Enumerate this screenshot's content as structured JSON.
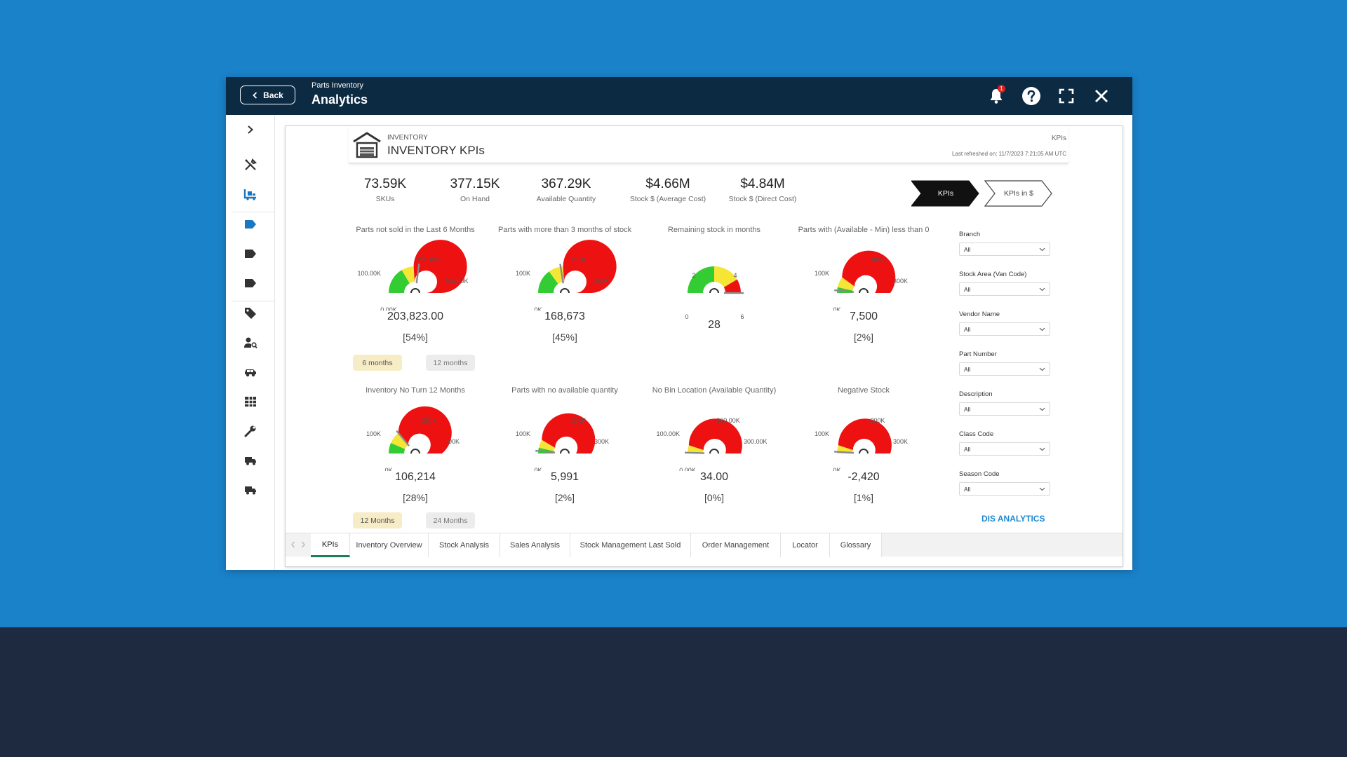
{
  "titlebar": {
    "back_label": "Back",
    "subtitle": "Parts Inventory",
    "title": "Analytics",
    "notification_count": "1"
  },
  "sidebar": {
    "icons": [
      "chevron-right-icon",
      "tools-icon",
      "forklift-icon",
      "tag-blue-icon",
      "tag-icon",
      "tag-icon",
      "price-tag-icon",
      "user-search-icon",
      "car-icon",
      "grid-icon",
      "wrench-icon",
      "truck-icon",
      "truck-icon"
    ]
  },
  "header": {
    "small": "INVENTORY",
    "title": "INVENTORY KPIs",
    "right_label": "KPIs",
    "refreshed": "Last refreshed on: 11/7/2023 7:21:05 AM UTC"
  },
  "stats": [
    {
      "value": "73.59K",
      "label": "SKUs"
    },
    {
      "value": "377.15K",
      "label": "On Hand"
    },
    {
      "value": "367.29K",
      "label": "Available Quantity"
    },
    {
      "value": "$4.66M",
      "label": "Stock $ (Average Cost)"
    },
    {
      "value": "$4.84M",
      "label": "Stock $ (Direct Cost)"
    }
  ],
  "view_buttons": {
    "kpis": "KPIs",
    "kpis_dollar": "KPIs in $"
  },
  "gauges": [
    {
      "title": "Parts not sold in the Last 6 Months",
      "value": "203,823.00",
      "pct": "[54%]",
      "needle": 0.54,
      "labels": {
        "left": "100.00K",
        "top": "200.00K",
        "right": "300.00K",
        "min": "0.00K"
      },
      "arcs": [
        [
          "#33cc33",
          0.33
        ],
        [
          "#f5e635",
          0.15
        ],
        [
          "#ee1111",
          0.52
        ]
      ]
    },
    {
      "title": "Parts with more than 3 months of stock",
      "value": "168,673",
      "pct": "[45%]",
      "needle": 0.45,
      "labels": {
        "left": "100K",
        "top": "200K",
        "right": "300K",
        "min": "0K"
      },
      "arcs": [
        [
          "#33cc33",
          0.3
        ],
        [
          "#f5e635",
          0.18
        ],
        [
          "#ee1111",
          0.52
        ]
      ]
    },
    {
      "title": "Remaining stock in months",
      "value": "28",
      "pct": "",
      "needle": 1.0,
      "labels": {
        "left": "2",
        "top": "",
        "right": "4",
        "min": "0",
        "max": "6"
      },
      "arcs": [
        [
          "#33cc33",
          0.5
        ],
        [
          "#f5e635",
          0.33
        ],
        [
          "#ee1111",
          0.17
        ]
      ]
    },
    {
      "title": "Parts with (Available - Min) less than 0",
      "value": "7,500",
      "pct": "[2%]",
      "needle": 0.03,
      "labels": {
        "left": "100K",
        "top": "200K",
        "right": "300K",
        "min": "0K"
      },
      "arcs": [
        [
          "#33cc33",
          0.07
        ],
        [
          "#f5e635",
          0.13
        ],
        [
          "#ee1111",
          0.8
        ]
      ]
    },
    {
      "title": "Inventory No Turn 12 Months",
      "value": "106,214",
      "pct": "[28%]",
      "needle": 0.28,
      "labels": {
        "left": "100K",
        "top": "200K",
        "right": "300K",
        "min": "0K"
      },
      "arcs": [
        [
          "#33cc33",
          0.13
        ],
        [
          "#f5e635",
          0.15
        ],
        [
          "#ee1111",
          0.72
        ]
      ]
    },
    {
      "title": "Parts with no available quantity",
      "value": "5,991",
      "pct": "[2%]",
      "needle": 0.03,
      "labels": {
        "left": "100K",
        "top": "200K",
        "right": "300K",
        "min": "0K"
      },
      "arcs": [
        [
          "#33cc33",
          0.07
        ],
        [
          "#f5e635",
          0.1
        ],
        [
          "#ee1111",
          0.83
        ]
      ]
    },
    {
      "title": "No Bin Location (Available Quantity)",
      "value": "34.00",
      "pct": "[0%]",
      "needle": 0.01,
      "labels": {
        "left": "100.00K",
        "top": "200.00K",
        "right": "300.00K",
        "min": "0.00K"
      },
      "arcs": [
        [
          "#f5e635",
          0.1
        ],
        [
          "#ee1111",
          0.9
        ]
      ]
    },
    {
      "title": "Negative Stock",
      "value": "-2,420",
      "pct": "[1%]",
      "needle": 0.02,
      "labels": {
        "left": "100K",
        "top": "200K",
        "right": "300K",
        "min": "0K"
      },
      "arcs": [
        [
          "#f5e635",
          0.1
        ],
        [
          "#ee1111",
          0.9
        ]
      ]
    }
  ],
  "pills": {
    "row1": [
      "6 months",
      "12 months"
    ],
    "row2": [
      "12 Months",
      "24 Months"
    ]
  },
  "filters": [
    {
      "label": "Branch",
      "value": "All"
    },
    {
      "label": "Stock Area (Van Code)",
      "value": "All"
    },
    {
      "label": "Vendor Name",
      "value": "All"
    },
    {
      "label": "Part Number",
      "value": "All"
    },
    {
      "label": "Description",
      "value": "All"
    },
    {
      "label": "Class Code",
      "value": "All"
    },
    {
      "label": "Season Code",
      "value": "All"
    }
  ],
  "dis_link": "DIS ANALYTICS",
  "tabs": [
    "KPIs",
    "Inventory Overview",
    "Stock Analysis",
    "Sales Analysis",
    "Stock Management Last Sold",
    "Order Management",
    "Locator",
    "Glossary"
  ]
}
